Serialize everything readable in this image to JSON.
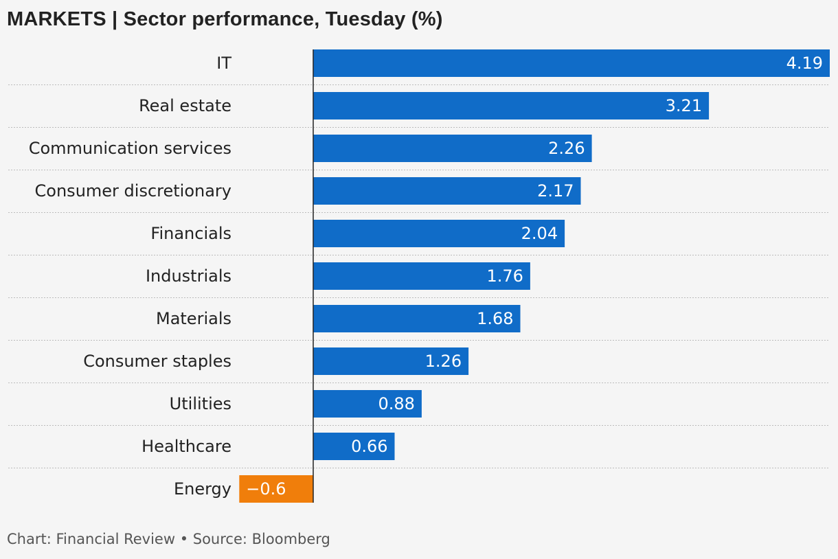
{
  "header": {
    "title": "MARKETS | Sector performance, Tuesday (%)"
  },
  "footer": {
    "source": "Chart: Financial Review • Source: Bloomberg"
  },
  "colors": {
    "positive": "#106cc8",
    "negative": "#f07e0b",
    "background": "#f5f5f5",
    "axis": "#222222",
    "gridline": "#bbbbbb"
  },
  "chart_data": {
    "type": "bar",
    "orientation": "horizontal",
    "title": "MARKETS | Sector performance, Tuesday (%)",
    "categories": [
      "IT",
      "Real estate",
      "Communication services",
      "Consumer discretionary",
      "Financials",
      "Industrials",
      "Materials",
      "Consumer staples",
      "Utilities",
      "Healthcare",
      "Energy"
    ],
    "values": [
      4.19,
      3.21,
      2.26,
      2.17,
      2.04,
      1.76,
      1.68,
      1.26,
      0.88,
      0.66,
      -0.6
    ],
    "value_labels": [
      "4.19",
      "3.21",
      "2.26",
      "2.17",
      "2.04",
      "1.76",
      "1.68",
      "1.26",
      "0.88",
      "0.66",
      "−0.6"
    ],
    "xlim": [
      -0.6,
      4.19
    ],
    "grid": false,
    "legend": "none"
  }
}
